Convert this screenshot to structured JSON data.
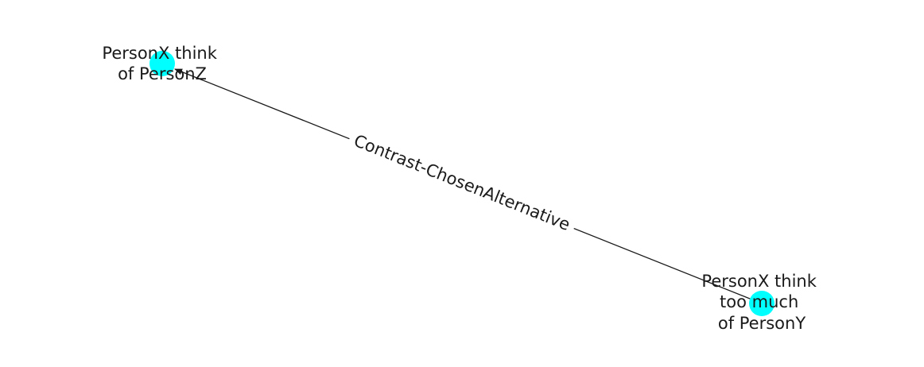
{
  "colors": {
    "node_fill": "#00ffff",
    "edge_stroke": "#1a1a1a",
    "label_text": "#1a1a1a",
    "background": "#ffffff"
  },
  "graph": {
    "nodes": [
      {
        "id": "source",
        "label_lines": [
          "PersonX think",
          "too much",
          "of PersonY"
        ]
      },
      {
        "id": "target",
        "label_lines": [
          "PersonX think",
          "of PersonZ"
        ]
      }
    ],
    "edges": [
      {
        "from": "source",
        "to": "target",
        "label": "Contrast-ChosenAlternative",
        "directed": true
      }
    ]
  }
}
